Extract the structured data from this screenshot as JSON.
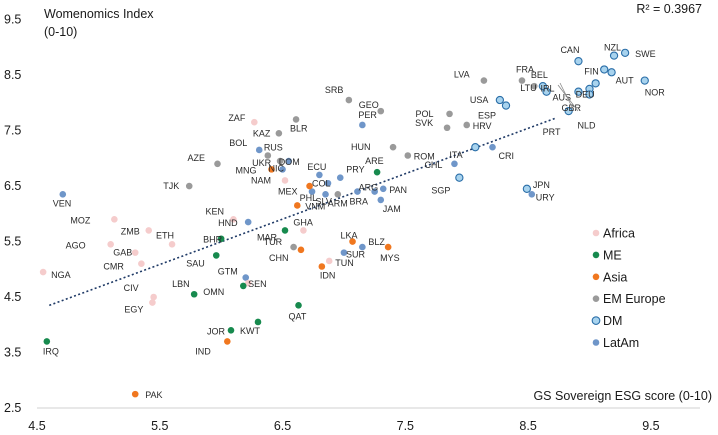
{
  "chart_data": {
    "type": "scatter",
    "ylabel": "Womenomics Index",
    "ylabel_sub": "(0-10)",
    "xlabel": "GS Sovereign ESG score (0-10)",
    "r2_label": "R² = 0.3967",
    "xlim": [
      4.5,
      9.9
    ],
    "ylim": [
      2.5,
      9.6
    ],
    "xticks": [
      "4.5",
      "5.5",
      "6.5",
      "7.5",
      "8.5",
      "9.5"
    ],
    "yticks": [
      "2.5",
      "3.5",
      "4.5",
      "5.5",
      "6.5",
      "7.5",
      "8.5",
      "9.5"
    ],
    "trendline": {
      "x": [
        4.6,
        8.72
      ],
      "y": [
        4.35,
        7.72
      ]
    },
    "groups": [
      {
        "name": "Africa",
        "color": "#f5cccc",
        "stroke": "none"
      },
      {
        "name": "ME",
        "color": "#178a4e",
        "stroke": "none"
      },
      {
        "name": "Asia",
        "color": "#f0771f",
        "stroke": "none"
      },
      {
        "name": "EM Europe",
        "color": "#9a9a9a",
        "stroke": "none"
      },
      {
        "name": "DM",
        "color": "#a8d3ee",
        "stroke": "#2a6ea8"
      },
      {
        "name": "LatAm",
        "color": "#6f96c9",
        "stroke": "none"
      }
    ],
    "points": [
      {
        "label": "VEN",
        "group": "LatAm",
        "x": 4.71,
        "y": 6.35
      },
      {
        "label": "NGA",
        "group": "Africa",
        "x": 4.55,
        "y": 4.95
      },
      {
        "label": "IRQ",
        "group": "ME",
        "x": 4.58,
        "y": 3.7
      },
      {
        "label": "MOZ",
        "group": "Africa",
        "x": 5.13,
        "y": 5.9
      },
      {
        "label": "ZMB",
        "group": "Africa",
        "x": 5.41,
        "y": 5.7
      },
      {
        "label": "AGO",
        "group": "Africa",
        "x": 5.1,
        "y": 5.45
      },
      {
        "label": "CMR",
        "group": "Africa",
        "x": 5.35,
        "y": 5.1
      },
      {
        "label": "GAB",
        "group": "Africa",
        "x": 5.3,
        "y": 5.3
      },
      {
        "label": "ETH",
        "group": "Africa",
        "x": 5.6,
        "y": 5.45
      },
      {
        "label": "TJK",
        "group": "EM Europe",
        "x": 5.74,
        "y": 6.5
      },
      {
        "label": "AZE",
        "group": "EM Europe",
        "x": 5.97,
        "y": 6.9
      },
      {
        "label": "ZAF",
        "group": "Africa",
        "x": 6.27,
        "y": 7.65
      },
      {
        "label": "KAZ",
        "group": "EM Europe",
        "x": 6.47,
        "y": 7.45
      },
      {
        "label": "BLR",
        "group": "EM Europe",
        "x": 6.61,
        "y": 7.7
      },
      {
        "label": "BOL",
        "group": "LatAm",
        "x": 6.31,
        "y": 7.15
      },
      {
        "label": "RUS",
        "group": "EM Europe",
        "x": 6.38,
        "y": 7.05
      },
      {
        "label": "UKR",
        "group": "EM Europe",
        "x": 6.48,
        "y": 6.95
      },
      {
        "label": "MNG",
        "group": "Asia",
        "x": 6.41,
        "y": 6.8
      },
      {
        "label": "DOM",
        "group": "LatAm",
        "x": 6.55,
        "y": 6.95
      },
      {
        "label": "NIC",
        "group": "LatAm",
        "x": 6.5,
        "y": 6.8
      },
      {
        "label": "NAM",
        "group": "Africa",
        "x": 6.52,
        "y": 6.6
      },
      {
        "label": "ECU",
        "group": "LatAm",
        "x": 6.8,
        "y": 6.7
      },
      {
        "label": "COL",
        "group": "LatAm",
        "x": 6.87,
        "y": 6.55
      },
      {
        "label": "PRY",
        "group": "LatAm",
        "x": 6.97,
        "y": 6.65
      },
      {
        "label": "MEX",
        "group": "LatAm",
        "x": 6.74,
        "y": 6.4
      },
      {
        "label": "SLV",
        "group": "LatAm",
        "x": 6.85,
        "y": 6.35
      },
      {
        "label": "ARM",
        "group": "EM Europe",
        "x": 6.95,
        "y": 6.35
      },
      {
        "label": "BRA",
        "group": "LatAm",
        "x": 7.11,
        "y": 6.4
      },
      {
        "label": "ARG",
        "group": "LatAm",
        "x": 7.25,
        "y": 6.4
      },
      {
        "label": "PAN",
        "group": "LatAm",
        "x": 7.32,
        "y": 6.45
      },
      {
        "label": "JAM",
        "group": "LatAm",
        "x": 7.3,
        "y": 6.25
      },
      {
        "label": "ARE",
        "group": "ME",
        "x": 7.27,
        "y": 6.75
      },
      {
        "label": "VNM",
        "group": "Asia",
        "x": 6.62,
        "y": 6.15
      },
      {
        "label": "PHL",
        "group": "Asia",
        "x": 6.72,
        "y": 6.5
      },
      {
        "label": "GHA",
        "group": "Africa",
        "x": 6.67,
        "y": 5.7
      },
      {
        "label": "KEN",
        "group": "Africa",
        "x": 6.1,
        "y": 5.9
      },
      {
        "label": "HND",
        "group": "LatAm",
        "x": 6.22,
        "y": 5.85
      },
      {
        "label": "MAR",
        "group": "ME",
        "x": 6.52,
        "y": 5.7
      },
      {
        "label": "TUR",
        "group": "EM Europe",
        "x": 6.59,
        "y": 5.4
      },
      {
        "label": "CHN",
        "group": "Asia",
        "x": 6.65,
        "y": 5.35
      },
      {
        "label": "LKA",
        "group": "Asia",
        "x": 7.07,
        "y": 5.5
      },
      {
        "label": "BLZ",
        "group": "LatAm",
        "x": 7.15,
        "y": 5.4
      },
      {
        "label": "SUR",
        "group": "LatAm",
        "x": 7.0,
        "y": 5.3
      },
      {
        "label": "IDN",
        "group": "Asia",
        "x": 6.82,
        "y": 5.05
      },
      {
        "label": "TUN",
        "group": "Africa",
        "x": 6.88,
        "y": 5.15
      },
      {
        "label": "MYS",
        "group": "Asia",
        "x": 7.36,
        "y": 5.4
      },
      {
        "label": "BHR",
        "group": "ME",
        "x": 6.0,
        "y": 5.55
      },
      {
        "label": "SAU",
        "group": "ME",
        "x": 5.96,
        "y": 5.25
      },
      {
        "label": "GTM",
        "group": "LatAm",
        "x": 6.2,
        "y": 4.85
      },
      {
        "label": "SEN",
        "group": "Africa",
        "x": 6.22,
        "y": 4.75
      },
      {
        "label": "OMN",
        "group": "ME",
        "x": 6.18,
        "y": 4.7
      },
      {
        "label": "LBN",
        "group": "ME",
        "x": 5.78,
        "y": 4.55
      },
      {
        "label": "CIV",
        "group": "Africa",
        "x": 5.45,
        "y": 4.5
      },
      {
        "label": "EGY",
        "group": "Africa",
        "x": 5.44,
        "y": 4.4
      },
      {
        "label": "QAT",
        "group": "ME",
        "x": 6.63,
        "y": 4.35
      },
      {
        "label": "KWT",
        "group": "ME",
        "x": 6.3,
        "y": 4.05
      },
      {
        "label": "JOR",
        "group": "ME",
        "x": 6.08,
        "y": 3.9
      },
      {
        "label": "IND",
        "group": "Asia",
        "x": 6.05,
        "y": 3.7
      },
      {
        "label": "PAK",
        "group": "Asia",
        "x": 5.3,
        "y": 2.75
      },
      {
        "label": "SRB",
        "group": "EM Europe",
        "x": 7.04,
        "y": 8.05
      },
      {
        "label": "GEO",
        "group": "EM Europe",
        "x": 7.3,
        "y": 7.85
      },
      {
        "label": "PER",
        "group": "LatAm",
        "x": 7.15,
        "y": 7.6
      },
      {
        "label": "HUN",
        "group": "EM Europe",
        "x": 7.4,
        "y": 7.2
      },
      {
        "label": "ROM",
        "group": "EM Europe",
        "x": 7.52,
        "y": 7.05
      },
      {
        "label": "POL",
        "group": "EM Europe",
        "x": 7.86,
        "y": 7.8
      },
      {
        "label": "SVK",
        "group": "EM Europe",
        "x": 7.84,
        "y": 7.55
      },
      {
        "label": "HRV",
        "group": "EM Europe",
        "x": 8.0,
        "y": 7.6
      },
      {
        "label": "LVA",
        "group": "EM Europe",
        "x": 8.14,
        "y": 8.4
      },
      {
        "label": "USA",
        "group": "DM",
        "x": 8.27,
        "y": 8.05
      },
      {
        "label": "ESP",
        "group": "DM",
        "x": 8.32,
        "y": 7.95
      },
      {
        "label": "FRA",
        "group": "EM Europe",
        "x": 8.45,
        "y": 8.4
      },
      {
        "label": "LTU",
        "group": "EM Europe",
        "x": 8.55,
        "y": 8.3
      },
      {
        "label": "BEL",
        "group": "DM",
        "x": 8.62,
        "y": 8.3
      },
      {
        "label": "IRL",
        "group": "DM",
        "x": 8.65,
        "y": 8.2
      },
      {
        "label": "CAN",
        "group": "DM",
        "x": 8.91,
        "y": 8.75
      },
      {
        "label": "NZL",
        "group": "DM",
        "x": 9.2,
        "y": 8.85
      },
      {
        "label": "SWE",
        "group": "DM",
        "x": 9.29,
        "y": 8.9
      },
      {
        "label": "FIN",
        "group": "DM",
        "x": 9.12,
        "y": 8.6
      },
      {
        "label": "AUT",
        "group": "DM",
        "x": 9.18,
        "y": 8.55
      },
      {
        "label": "DEU",
        "group": "DM",
        "x": 9.05,
        "y": 8.35
      },
      {
        "label": "NOR",
        "group": "DM",
        "x": 9.45,
        "y": 8.4
      },
      {
        "label": "AUS",
        "group": "DM",
        "x": 8.91,
        "y": 8.2
      },
      {
        "label": "PRT",
        "group": "DM",
        "x": 8.83,
        "y": 7.85
      },
      {
        "label": "GBR",
        "group": "DM",
        "x": 9.0,
        "y": 8.25
      },
      {
        "label": "NLD",
        "group": "DM",
        "x": 9.0,
        "y": 8.15
      },
      {
        "label": "ITA",
        "group": "DM",
        "x": 8.07,
        "y": 7.2
      },
      {
        "label": "CRI",
        "group": "LatAm",
        "x": 8.21,
        "y": 7.2
      },
      {
        "label": "CHL",
        "group": "LatAm",
        "x": 7.9,
        "y": 6.9
      },
      {
        "label": "SGP",
        "group": "DM",
        "x": 7.94,
        "y": 6.65
      },
      {
        "label": "JPN",
        "group": "DM",
        "x": 8.49,
        "y": 6.45
      },
      {
        "label": "URY",
        "group": "LatAm",
        "x": 8.53,
        "y": 6.35
      }
    ]
  }
}
